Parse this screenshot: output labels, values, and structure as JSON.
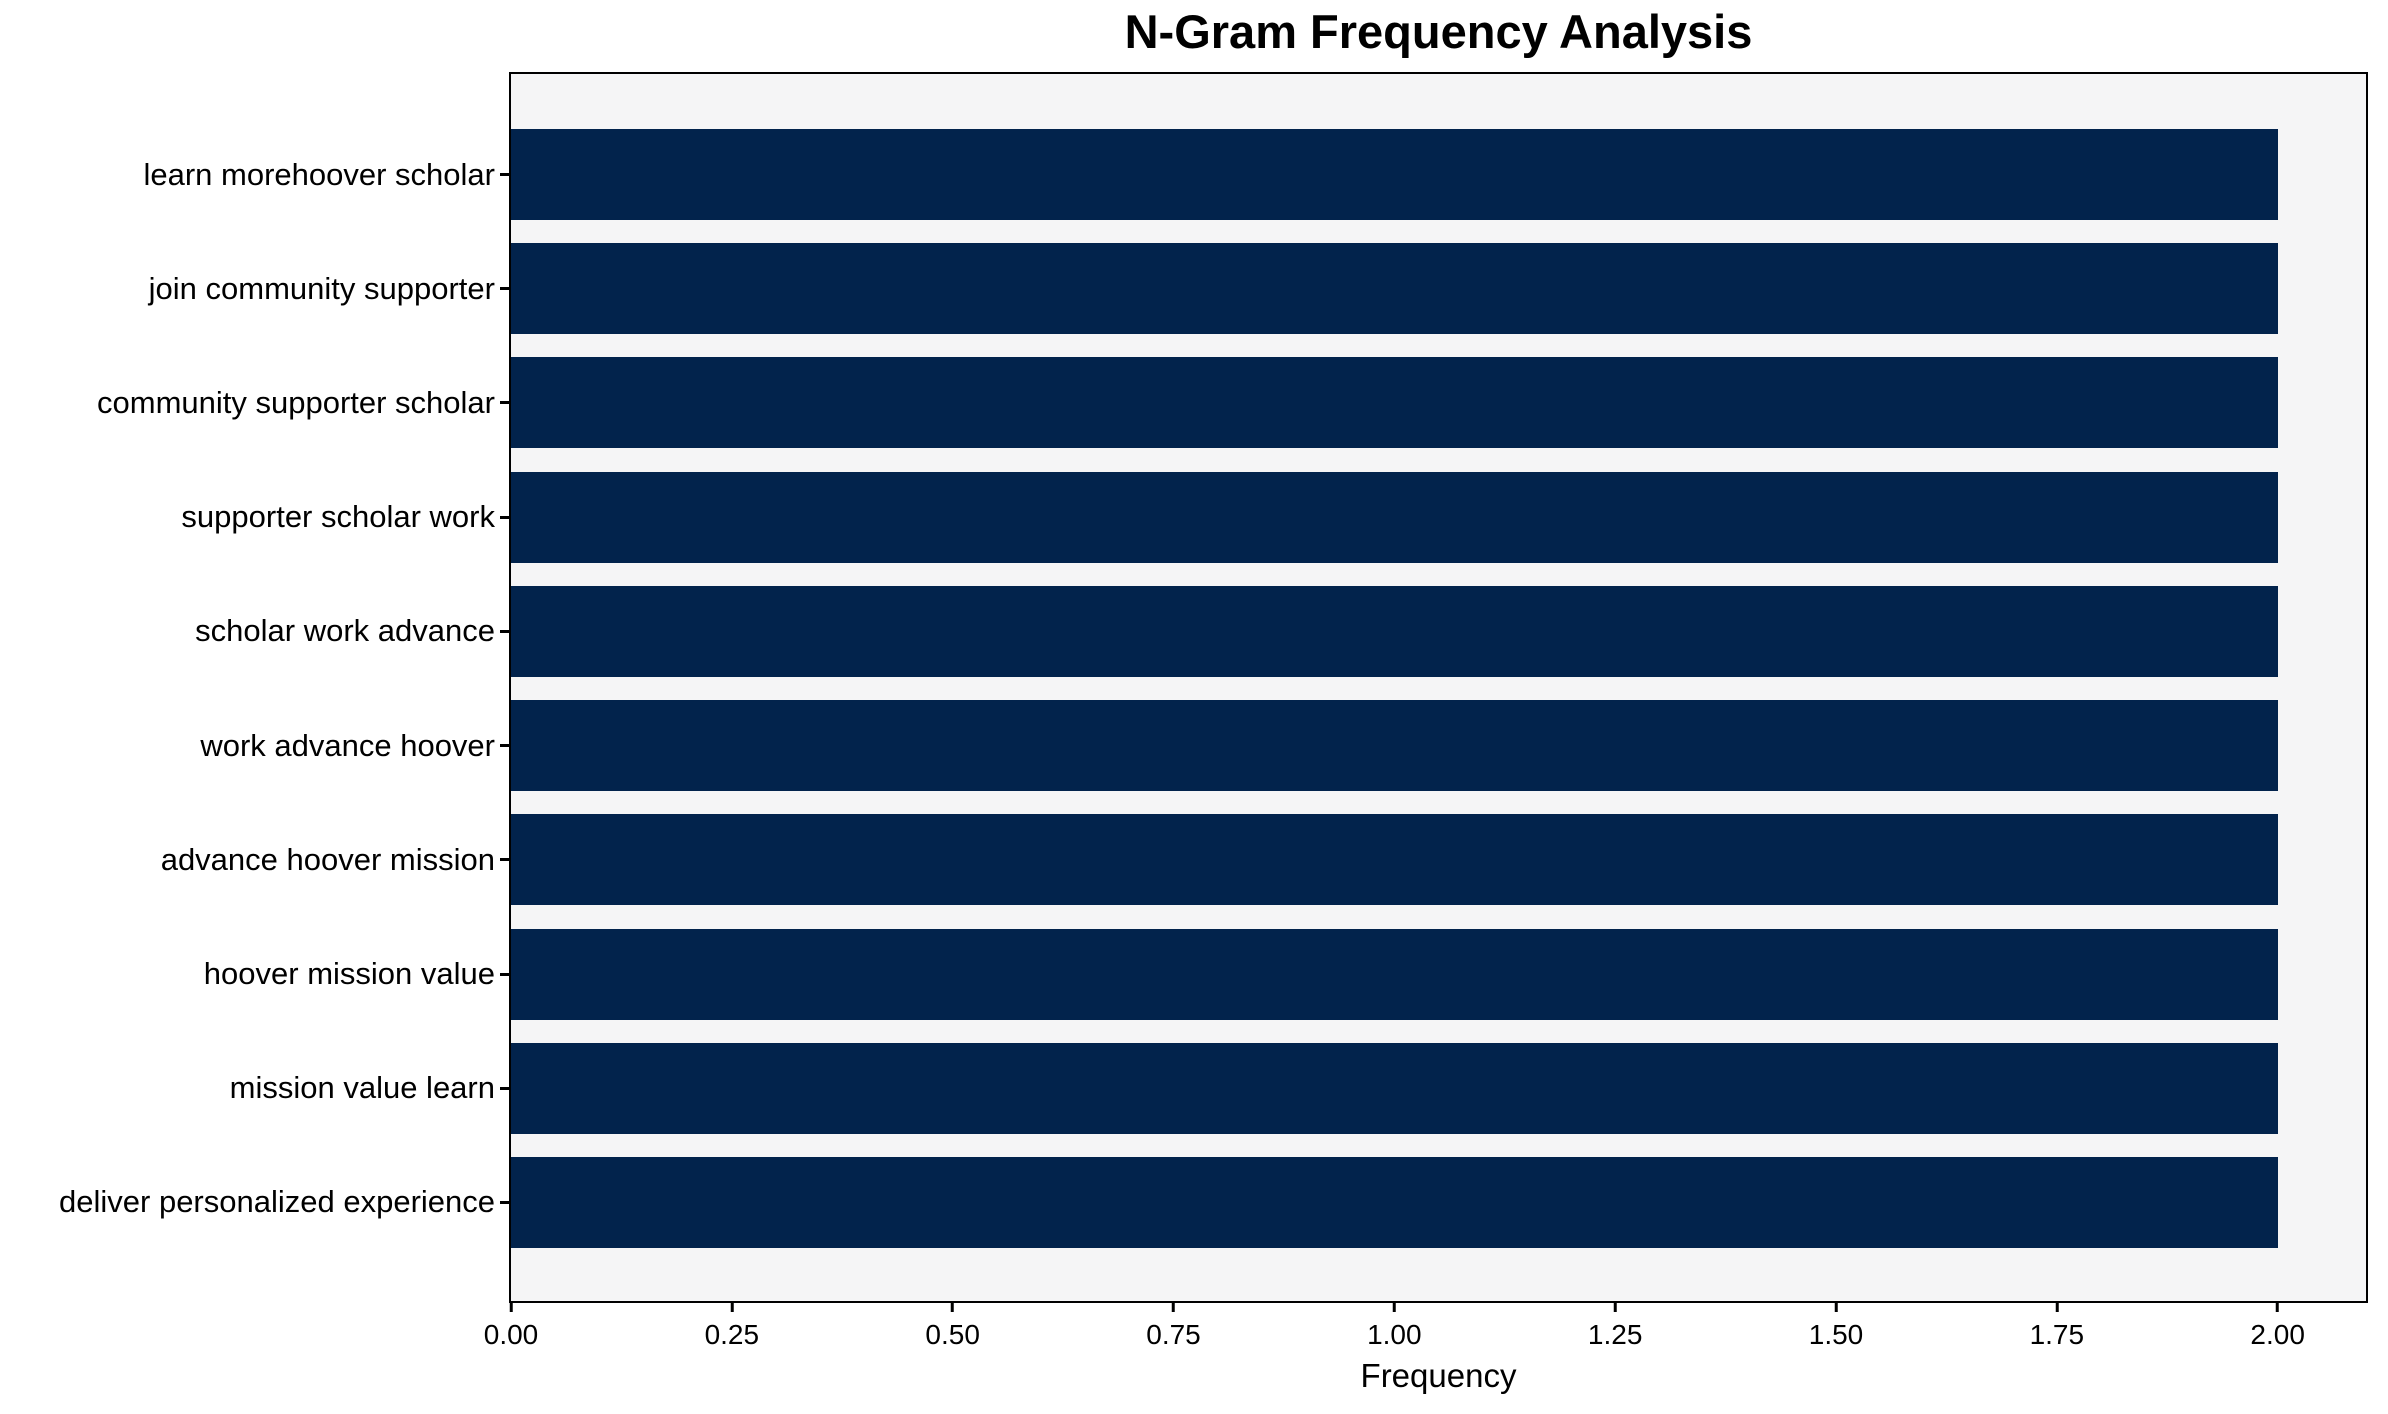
{
  "chart_data": {
    "type": "bar",
    "orientation": "horizontal",
    "title": "N-Gram Frequency Analysis",
    "xlabel": "Frequency",
    "ylabel": "",
    "categories": [
      "learn morehoover scholar",
      "join community supporter",
      "community supporter scholar",
      "supporter scholar work",
      "scholar work advance",
      "work advance hoover",
      "advance hoover mission",
      "hoover mission value",
      "mission value learn",
      "deliver personalized experience"
    ],
    "values": [
      2,
      2,
      2,
      2,
      2,
      2,
      2,
      2,
      2,
      2
    ],
    "xlim": [
      0,
      2.1
    ],
    "x_ticks": [
      {
        "value": 0,
        "label": "0.00"
      },
      {
        "value": 0.25,
        "label": "0.25"
      },
      {
        "value": 0.5,
        "label": "0.50"
      },
      {
        "value": 0.75,
        "label": "0.75"
      },
      {
        "value": 1,
        "label": "1.00"
      },
      {
        "value": 1.25,
        "label": "1.25"
      },
      {
        "value": 1.5,
        "label": "1.50"
      },
      {
        "value": 1.75,
        "label": "1.75"
      },
      {
        "value": 2,
        "label": "2.00"
      }
    ],
    "grid": false,
    "legend": "none",
    "colors": {
      "bar": "#02234c",
      "plot_background": "#f5f5f6",
      "figure_background": "#ffffff",
      "spine": "#000000",
      "text": "#000000"
    }
  }
}
